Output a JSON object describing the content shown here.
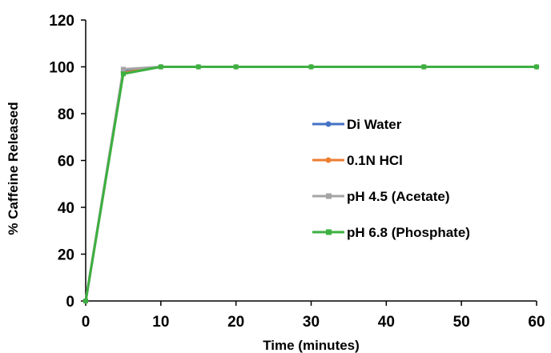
{
  "chart_data": {
    "type": "line",
    "title": "",
    "xlabel": "Time (minutes)",
    "ylabel": "% Caffeine Released",
    "xlim": [
      0,
      60
    ],
    "ylim": [
      0,
      120
    ],
    "x_ticks": [
      "0",
      "10",
      "20",
      "30",
      "40",
      "50",
      "60"
    ],
    "y_ticks": [
      "0",
      "20",
      "40",
      "60",
      "80",
      "100",
      "120"
    ],
    "grid": false,
    "legend_position": "center-right",
    "x": [
      0,
      5,
      10,
      15,
      20,
      30,
      45,
      60
    ],
    "series": [
      {
        "name": "Di Water",
        "color": "#4472C4",
        "values": [
          0,
          98,
          100,
          100,
          100,
          100,
          100,
          100
        ]
      },
      {
        "name": "0.1N HCl",
        "color": "#ED7D31",
        "values": [
          0,
          97.5,
          100,
          100,
          100,
          100,
          100,
          100
        ]
      },
      {
        "name": "pH 4.5 (Acetate)",
        "color": "#A5A5A5",
        "values": [
          0,
          99,
          100,
          100,
          100,
          100,
          100,
          100
        ]
      },
      {
        "name": "pH 6.8 (Phosphate)",
        "color": "#3CB040",
        "values": [
          0,
          97,
          100,
          100,
          100,
          100,
          100,
          100
        ]
      }
    ]
  }
}
